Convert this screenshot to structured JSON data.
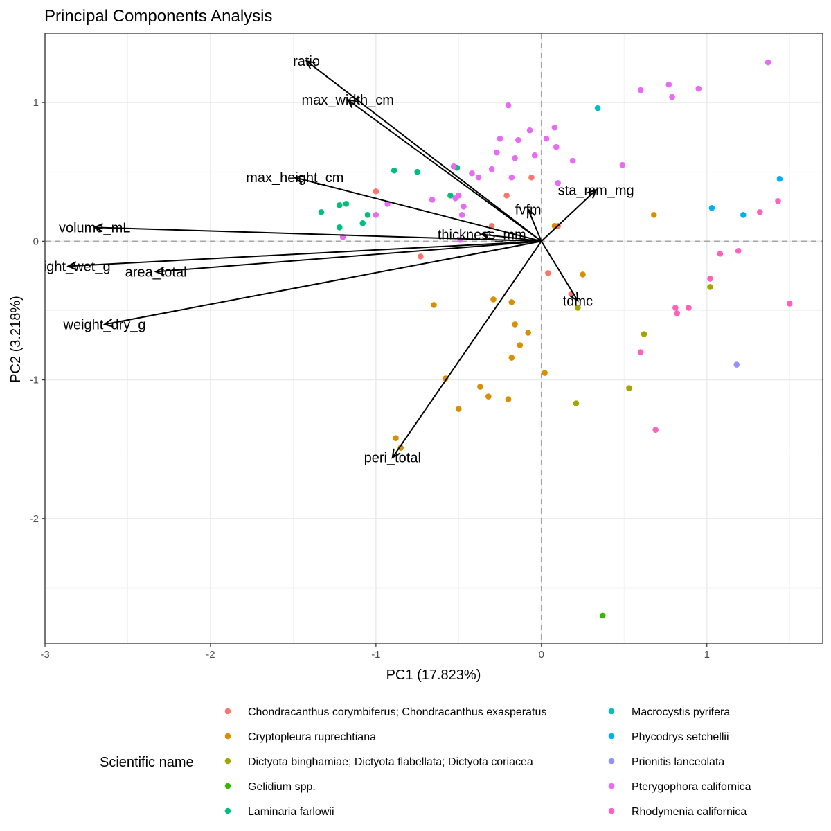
{
  "chart_data": {
    "type": "scatter",
    "title": "Principal Components Analysis",
    "xlabel": "PC1 (17.823%)",
    "ylabel": "PC2 (3.218%)",
    "xlim": [
      -3.0,
      1.7
    ],
    "ylim": [
      -2.9,
      1.5
    ],
    "xticks": [
      -3,
      -2,
      -1,
      0,
      1
    ],
    "yticks": [
      -2,
      -1,
      0,
      1
    ],
    "grid": true,
    "legend": {
      "title": "Scientific name",
      "position": "bottom"
    },
    "series": [
      {
        "name": "Chondracanthus corymbiferus; Chondracanthus exasperatus",
        "color": "#F8766D",
        "points": [
          [
            -1.0,
            0.36
          ],
          [
            -0.21,
            0.33
          ],
          [
            -0.06,
            0.46
          ],
          [
            -0.3,
            0.11
          ],
          [
            0.1,
            0.11
          ],
          [
            -0.73,
            -0.11
          ],
          [
            0.04,
            -0.23
          ],
          [
            0.18,
            -0.38
          ]
        ]
      },
      {
        "name": "Cryptopleura ruprechtiana",
        "color": "#D89000",
        "points": [
          [
            0.68,
            0.19
          ],
          [
            0.08,
            0.11
          ],
          [
            -0.65,
            -0.46
          ],
          [
            -0.29,
            -0.42
          ],
          [
            -0.18,
            -0.44
          ],
          [
            -0.16,
            -0.6
          ],
          [
            -0.08,
            -0.66
          ],
          [
            -0.13,
            -0.75
          ],
          [
            -0.18,
            -0.84
          ],
          [
            0.25,
            -0.24
          ],
          [
            0.02,
            -0.95
          ],
          [
            -0.58,
            -0.99
          ],
          [
            -0.37,
            -1.05
          ],
          [
            -0.32,
            -1.12
          ],
          [
            -0.2,
            -1.14
          ],
          [
            -0.5,
            -1.21
          ],
          [
            -0.88,
            -1.42
          ],
          [
            -0.85,
            -1.49
          ]
        ]
      },
      {
        "name": "Dictyota binghamiae; Dictyota flabellata; Dictyota coriacea",
        "color": "#A3A500",
        "points": [
          [
            0.22,
            -0.48
          ],
          [
            1.02,
            -0.33
          ],
          [
            0.62,
            -0.67
          ],
          [
            0.53,
            -1.06
          ],
          [
            0.21,
            -1.17
          ]
        ]
      },
      {
        "name": "Gelidium spp.",
        "color": "#39B600",
        "points": [
          [
            0.37,
            -2.7
          ]
        ]
      },
      {
        "name": "Laminaria farlowii",
        "color": "#00BF7D",
        "points": [
          [
            -0.89,
            0.51
          ],
          [
            -0.75,
            0.5
          ],
          [
            -0.51,
            0.53
          ],
          [
            -0.55,
            0.33
          ],
          [
            -1.18,
            0.27
          ],
          [
            -1.22,
            0.26
          ],
          [
            -1.05,
            0.19
          ],
          [
            -1.33,
            0.21
          ],
          [
            -1.08,
            0.13
          ],
          [
            -1.22,
            0.1
          ]
        ]
      },
      {
        "name": "Macrocystis pyrifera",
        "color": "#00BFC4",
        "points": [
          [
            0.34,
            0.96
          ]
        ]
      },
      {
        "name": "Phycodrys setchellii",
        "color": "#00B0F6",
        "points": [
          [
            1.44,
            0.45
          ],
          [
            1.03,
            0.24
          ],
          [
            1.22,
            0.19
          ]
        ]
      },
      {
        "name": "Prionitis lanceolata",
        "color": "#9590FF",
        "points": [
          [
            1.18,
            -0.89
          ]
        ]
      },
      {
        "name": "Pterygophora californica",
        "color": "#E76BF3",
        "points": [
          [
            1.37,
            1.29
          ],
          [
            0.77,
            1.13
          ],
          [
            0.6,
            1.09
          ],
          [
            0.95,
            1.1
          ],
          [
            0.79,
            1.04
          ],
          [
            -0.2,
            0.98
          ],
          [
            -0.07,
            0.8
          ],
          [
            0.08,
            0.82
          ],
          [
            -0.25,
            0.74
          ],
          [
            -0.14,
            0.73
          ],
          [
            0.03,
            0.74
          ],
          [
            -0.27,
            0.64
          ],
          [
            0.09,
            0.68
          ],
          [
            -0.04,
            0.62
          ],
          [
            -0.16,
            0.6
          ],
          [
            0.19,
            0.58
          ],
          [
            0.49,
            0.55
          ],
          [
            -0.53,
            0.54
          ],
          [
            -0.3,
            0.52
          ],
          [
            -0.42,
            0.49
          ],
          [
            -0.38,
            0.46
          ],
          [
            -0.18,
            0.46
          ],
          [
            0.1,
            0.42
          ],
          [
            -0.5,
            0.33
          ],
          [
            -0.52,
            0.31
          ],
          [
            -0.66,
            0.3
          ],
          [
            -0.93,
            0.27
          ],
          [
            -0.47,
            0.25
          ],
          [
            -0.48,
            0.19
          ],
          [
            -1.0,
            0.19
          ],
          [
            -1.2,
            0.03
          ],
          [
            -0.49,
            0.01
          ]
        ]
      },
      {
        "name": "Rhodymenia californica",
        "color": "#FF62BC",
        "points": [
          [
            1.43,
            0.29
          ],
          [
            1.32,
            0.21
          ],
          [
            1.08,
            -0.09
          ],
          [
            1.19,
            -0.07
          ],
          [
            1.02,
            -0.27
          ],
          [
            1.5,
            -0.45
          ],
          [
            0.81,
            -0.48
          ],
          [
            0.89,
            -0.48
          ],
          [
            0.82,
            -0.52
          ],
          [
            0.6,
            -0.8
          ],
          [
            0.69,
            -1.36
          ]
        ]
      }
    ],
    "loadings": [
      {
        "label": "ratio",
        "x": -1.42,
        "y": 1.3
      },
      {
        "label": "max_width_cm",
        "x": -1.17,
        "y": 1.02
      },
      {
        "label": "max_height_cm",
        "x": -1.49,
        "y": 0.46
      },
      {
        "label": "volume_mL",
        "x": -2.7,
        "y": 0.1
      },
      {
        "label": "weight_wet_g",
        "x": -2.86,
        "y": -0.18
      },
      {
        "label": "area_total",
        "x": -2.33,
        "y": -0.22
      },
      {
        "label": "weight_dry_g",
        "x": -2.64,
        "y": -0.6
      },
      {
        "label": "thickness_mm",
        "x": -0.36,
        "y": 0.05
      },
      {
        "label": "fvfm",
        "x": -0.08,
        "y": 0.23
      },
      {
        "label": "sta_mm_mg",
        "x": 0.33,
        "y": 0.37
      },
      {
        "label": "tdmc",
        "x": 0.22,
        "y": -0.43
      },
      {
        "label": "peri_total",
        "x": -0.9,
        "y": -1.56
      }
    ]
  }
}
